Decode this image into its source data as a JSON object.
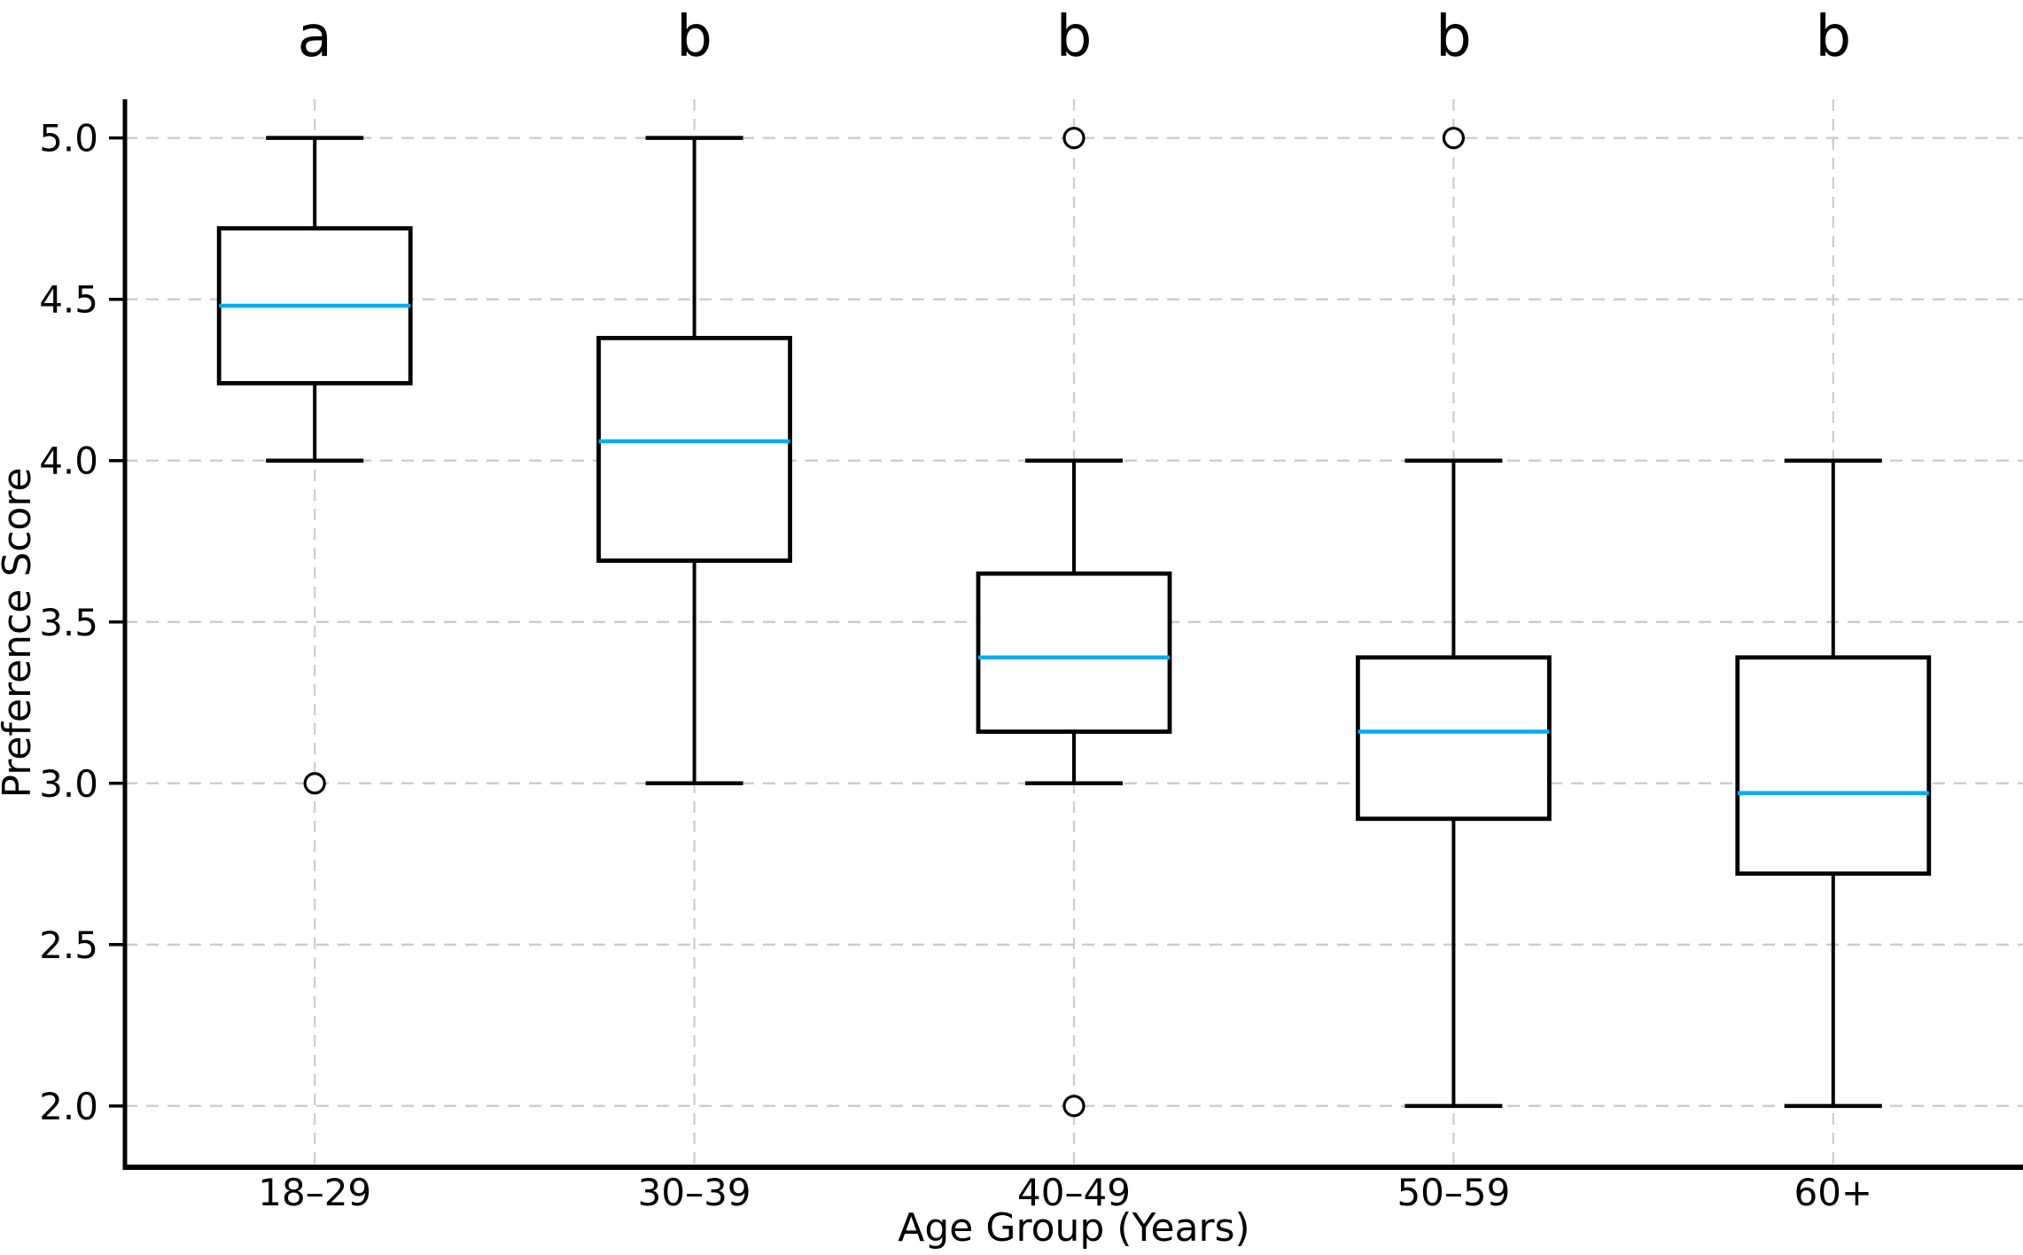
{
  "chart_data": {
    "type": "boxplot",
    "title": "",
    "xlabel": "Age Group (Years)",
    "ylabel": "Preference Score",
    "categories": [
      "18–29",
      "30–39",
      "40–49",
      "50–59",
      "60+"
    ],
    "groups": [
      {
        "label": "18–29",
        "letter": "a",
        "whisker_low": 4.0,
        "q1": 4.24,
        "median": 4.48,
        "q3": 4.72,
        "whisker_high": 5.0,
        "outliers": [
          3.0
        ]
      },
      {
        "label": "30–39",
        "letter": "b",
        "whisker_low": 3.0,
        "q1": 3.69,
        "median": 4.06,
        "q3": 4.38,
        "whisker_high": 5.0,
        "outliers": []
      },
      {
        "label": "40–49",
        "letter": "b",
        "whisker_low": 3.0,
        "q1": 3.16,
        "median": 3.39,
        "q3": 3.65,
        "whisker_high": 4.0,
        "outliers": [
          5.0,
          2.0
        ]
      },
      {
        "label": "50–59",
        "letter": "b",
        "whisker_low": 2.0,
        "q1": 2.89,
        "median": 3.16,
        "q3": 3.39,
        "whisker_high": 4.0,
        "outliers": [
          5.0
        ]
      },
      {
        "label": "60+",
        "letter": "b",
        "whisker_low": 2.0,
        "q1": 2.72,
        "median": 2.97,
        "q3": 3.39,
        "whisker_high": 4.0,
        "outliers": []
      }
    ],
    "yticks": [
      2.0,
      2.5,
      3.0,
      3.5,
      4.0,
      4.5,
      5.0
    ],
    "ylim": [
      1.81,
      5.12
    ],
    "grid": true,
    "legend_position": "none",
    "colors": {
      "median": "#00AEEF",
      "box_line": "#000000",
      "grid": "#cccccc",
      "text": "#000000",
      "background": "#ffffff"
    }
  }
}
